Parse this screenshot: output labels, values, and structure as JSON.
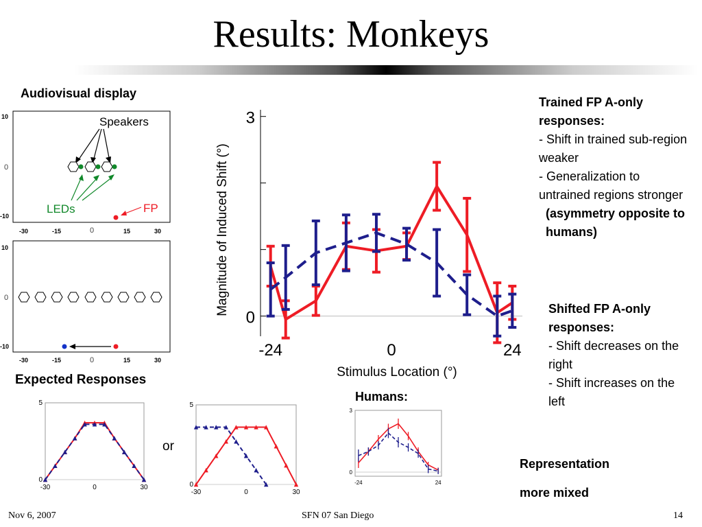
{
  "title": "Results: Monkeys",
  "audiovisual": {
    "heading": "Audiovisual display",
    "panel1": {
      "y_ticks": [
        "10",
        "0",
        "-10"
      ],
      "x_ticks": [
        "-30",
        "-15",
        "0",
        "15",
        "30"
      ],
      "speakers_label": "Speakers",
      "leds_label": "LEDs",
      "fp_label": "FP"
    },
    "panel2": {
      "y_ticks": [
        "10",
        "0",
        "-10"
      ],
      "x_ticks": [
        "-30",
        "-15",
        "0",
        "15",
        "30"
      ]
    }
  },
  "expected": {
    "heading": "Expected Responses",
    "or_label": "or"
  },
  "humans_label": "Humans:",
  "notes": {
    "trained_heading": "Trained FP A-only responses:",
    "trained_items": [
      "- Shift in trained sub-region weaker",
      "- Generalization to untrained regions stronger"
    ],
    "trained_emphasis": "(asymmetry opposite to humans)",
    "shifted_heading": "Shifted FP A-only responses:",
    "shifted_items": [
      "- Shift decreases on the right",
      "- Shift increases on the left"
    ],
    "representation": "Representation more mixed"
  },
  "footer": {
    "left": "Nov  6, 2007",
    "center": "SFN 07 San Diego",
    "right": "14"
  },
  "colors": {
    "red": "#ee1c25",
    "blue": "#1e1e8c",
    "green": "#11882a"
  },
  "chart_data": [
    {
      "type": "line",
      "xlabel": "Stimulus Location (°)",
      "ylabel": "Magnitude of Induced Shift (°)",
      "xlim": [
        -26,
        26
      ],
      "ylim": [
        -0.2,
        3.1
      ],
      "x_ticks": [
        -24,
        0,
        24
      ],
      "x_tick_labels": [
        "-24",
        "0",
        "24"
      ],
      "y_ticks": [
        0,
        3
      ],
      "y_tick_labels": [
        "0",
        "3"
      ],
      "y_minor_ticks": [
        1,
        2
      ],
      "grid": false,
      "series": [
        {
          "color": "#ee1c25",
          "style": "solid",
          "x": [
            -24,
            -21,
            -15,
            -9,
            -3,
            3,
            9,
            15,
            21,
            24
          ],
          "y": [
            0.75,
            -0.05,
            0.23,
            1.05,
            0.98,
            1.05,
            1.95,
            1.22,
            0.05,
            0.2
          ],
          "err": [
            0.3,
            0.28,
            0.22,
            0.35,
            0.32,
            0.2,
            0.36,
            0.55,
            0.45,
            0.25
          ]
        },
        {
          "color": "#1e1e8c",
          "style": "dashed",
          "x": [
            -24,
            -21,
            -15,
            -9,
            -3,
            3,
            9,
            15,
            21,
            24
          ],
          "y": [
            0.4,
            0.58,
            0.95,
            1.1,
            1.25,
            1.08,
            0.8,
            0.32,
            0.0,
            0.08
          ],
          "err": [
            0.4,
            0.48,
            0.48,
            0.42,
            0.28,
            0.24,
            0.5,
            0.3,
            0.3,
            0.25
          ]
        }
      ]
    },
    {
      "type": "line",
      "y_ticks": [
        0,
        5
      ],
      "y_tick_labels": [
        "0",
        "5"
      ],
      "x_ticks": [
        -30,
        0,
        30
      ],
      "x_tick_labels": [
        "-30",
        "0",
        "30"
      ],
      "xlim": [
        -30,
        30
      ],
      "ylim": [
        0,
        5
      ],
      "series": [
        {
          "color": "#ee1c25",
          "style": "solid",
          "x": [
            -30,
            -24,
            -18,
            -12,
            -6,
            0,
            6,
            12,
            18,
            24,
            30
          ],
          "y": [
            0,
            0.9,
            1.8,
            2.7,
            3.7,
            3.7,
            3.7,
            2.7,
            1.8,
            0.9,
            0
          ]
        },
        {
          "color": "#1e1e8c",
          "style": "dashed",
          "x": [
            -30,
            -24,
            -18,
            -12,
            -6,
            0,
            6,
            12,
            18,
            24,
            30
          ],
          "y": [
            0,
            0.9,
            1.8,
            2.7,
            3.6,
            3.6,
            3.6,
            2.7,
            1.8,
            0.9,
            0
          ]
        }
      ]
    },
    {
      "type": "line",
      "y_ticks": [
        0,
        5
      ],
      "y_tick_labels": [
        "0",
        "5"
      ],
      "x_ticks": [
        -30,
        0,
        30
      ],
      "x_tick_labels": [
        "-30",
        "0",
        "30"
      ],
      "xlim": [
        -30,
        30
      ],
      "ylim": [
        0,
        5
      ],
      "series": [
        {
          "color": "#ee1c25",
          "style": "solid",
          "x": [
            -30,
            -24,
            -18,
            -12,
            -6,
            0,
            6,
            12,
            18,
            24,
            30
          ],
          "y": [
            0,
            0.9,
            1.8,
            2.7,
            3.6,
            3.6,
            3.6,
            3.6,
            2.4,
            1.2,
            0
          ]
        },
        {
          "color": "#1e1e8c",
          "style": "dashed",
          "x": [
            -30,
            -24,
            -18,
            -12,
            -6,
            0,
            6,
            12
          ],
          "y": [
            3.6,
            3.6,
            3.6,
            3.6,
            2.7,
            1.8,
            0.9,
            0
          ]
        }
      ]
    },
    {
      "type": "line",
      "y_ticks": [
        0,
        3
      ],
      "y_tick_labels": [
        "0",
        "3"
      ],
      "x_ticks": [
        -24,
        24
      ],
      "x_tick_labels": [
        "-24",
        "24"
      ],
      "xlim": [
        -26,
        26
      ],
      "ylim": [
        -0.2,
        3
      ],
      "series": [
        {
          "color": "#ee1c25",
          "style": "solid",
          "x": [
            -24,
            -18,
            -12,
            -6,
            0,
            6,
            12,
            18,
            24
          ],
          "y": [
            0.45,
            1.0,
            1.6,
            2.1,
            2.35,
            1.75,
            1.0,
            0.35,
            0.1
          ],
          "err": [
            0.25,
            0.2,
            0.2,
            0.25,
            0.25,
            0.2,
            0.2,
            0.15,
            0.12
          ]
        },
        {
          "color": "#1e1e8c",
          "style": "dashed",
          "x": [
            -24,
            -18,
            -12,
            -6,
            0,
            6,
            12,
            18,
            24
          ],
          "y": [
            0.8,
            1.0,
            1.3,
            1.9,
            1.45,
            1.2,
            0.9,
            0.15,
            0.05
          ],
          "err": [
            0.3,
            0.2,
            0.2,
            0.25,
            0.25,
            0.2,
            0.2,
            0.2,
            0.15
          ]
        }
      ]
    }
  ]
}
